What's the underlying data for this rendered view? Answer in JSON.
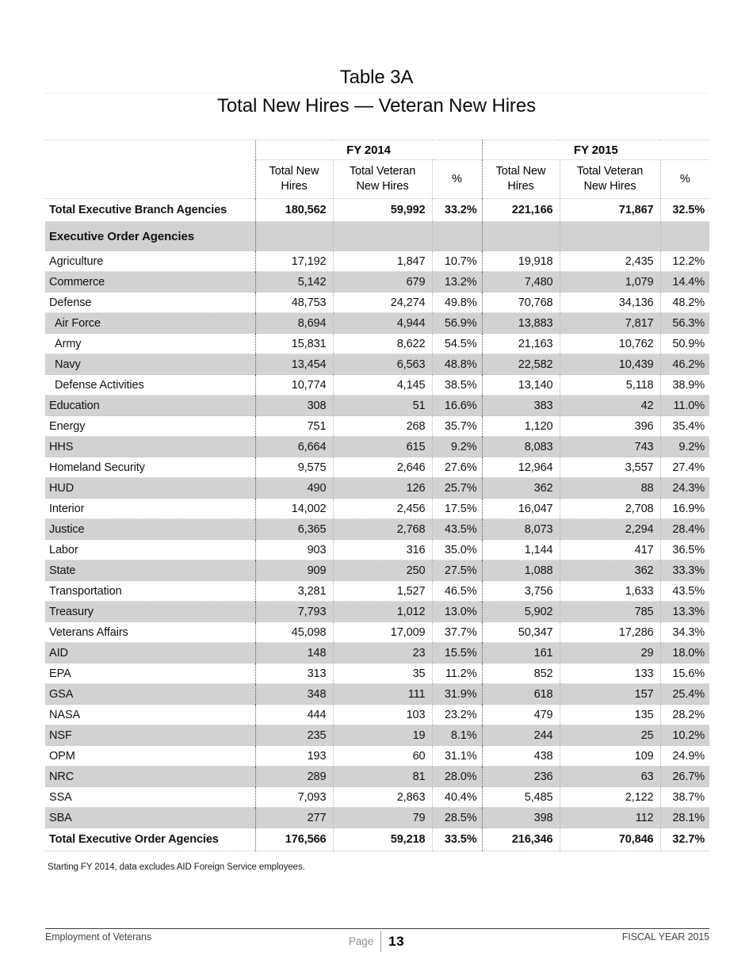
{
  "page": {
    "title_line1": "Table 3A",
    "title_line2": "Total New Hires — Veteran New Hires"
  },
  "table": {
    "col_groups": [
      "FY 2014",
      "FY 2015"
    ],
    "sub_headers": [
      "Total New Hires",
      "Total Veteran New Hires",
      "%",
      "Total New Hires",
      "Total Veteran New Hires",
      "%"
    ],
    "rows": [
      {
        "label": "Total Executive Branch Agencies",
        "style": "total",
        "shade": false,
        "indent": false,
        "values": [
          "180,562",
          "59,992",
          "33.2%",
          "221,166",
          "71,867",
          "32.5%"
        ]
      },
      {
        "label": "Executive Order Agencies",
        "style": "section",
        "shade": true,
        "indent": false,
        "values": [
          "",
          "",
          "",
          "",
          "",
          ""
        ]
      },
      {
        "label": "Agriculture",
        "style": "plain",
        "shade": false,
        "indent": false,
        "values": [
          "17,192",
          "1,847",
          "10.7%",
          "19,918",
          "2,435",
          "12.2%"
        ]
      },
      {
        "label": "Commerce",
        "style": "plain",
        "shade": true,
        "indent": false,
        "values": [
          "5,142",
          "679",
          "13.2%",
          "7,480",
          "1,079",
          "14.4%"
        ]
      },
      {
        "label": "Defense",
        "style": "plain",
        "shade": false,
        "indent": false,
        "values": [
          "48,753",
          "24,274",
          "49.8%",
          "70,768",
          "34,136",
          "48.2%"
        ]
      },
      {
        "label": "Air Force",
        "style": "plain",
        "shade": true,
        "indent": true,
        "values": [
          "8,694",
          "4,944",
          "56.9%",
          "13,883",
          "7,817",
          "56.3%"
        ]
      },
      {
        "label": "Army",
        "style": "plain",
        "shade": false,
        "indent": true,
        "values": [
          "15,831",
          "8,622",
          "54.5%",
          "21,163",
          "10,762",
          "50.9%"
        ]
      },
      {
        "label": "Navy",
        "style": "plain",
        "shade": true,
        "indent": true,
        "values": [
          "13,454",
          "6,563",
          "48.8%",
          "22,582",
          "10,439",
          "46.2%"
        ]
      },
      {
        "label": "Defense Activities",
        "style": "plain",
        "shade": false,
        "indent": true,
        "values": [
          "10,774",
          "4,145",
          "38.5%",
          "13,140",
          "5,118",
          "38.9%"
        ]
      },
      {
        "label": "Education",
        "style": "plain",
        "shade": true,
        "indent": false,
        "values": [
          "308",
          "51",
          "16.6%",
          "383",
          "42",
          "11.0%"
        ]
      },
      {
        "label": "Energy",
        "style": "plain",
        "shade": false,
        "indent": false,
        "values": [
          "751",
          "268",
          "35.7%",
          "1,120",
          "396",
          "35.4%"
        ]
      },
      {
        "label": "HHS",
        "style": "plain",
        "shade": true,
        "indent": false,
        "values": [
          "6,664",
          "615",
          "9.2%",
          "8,083",
          "743",
          "9.2%"
        ]
      },
      {
        "label": "Homeland Security",
        "style": "plain",
        "shade": false,
        "indent": false,
        "values": [
          "9,575",
          "2,646",
          "27.6%",
          "12,964",
          "3,557",
          "27.4%"
        ]
      },
      {
        "label": "HUD",
        "style": "plain",
        "shade": true,
        "indent": false,
        "values": [
          "490",
          "126",
          "25.7%",
          "362",
          "88",
          "24.3%"
        ]
      },
      {
        "label": "Interior",
        "style": "plain",
        "shade": false,
        "indent": false,
        "values": [
          "14,002",
          "2,456",
          "17.5%",
          "16,047",
          "2,708",
          "16.9%"
        ]
      },
      {
        "label": "Justice",
        "style": "plain",
        "shade": true,
        "indent": false,
        "values": [
          "6,365",
          "2,768",
          "43.5%",
          "8,073",
          "2,294",
          "28.4%"
        ]
      },
      {
        "label": "Labor",
        "style": "plain",
        "shade": false,
        "indent": false,
        "values": [
          "903",
          "316",
          "35.0%",
          "1,144",
          "417",
          "36.5%"
        ]
      },
      {
        "label": "State",
        "style": "plain",
        "shade": true,
        "indent": false,
        "values": [
          "909",
          "250",
          "27.5%",
          "1,088",
          "362",
          "33.3%"
        ]
      },
      {
        "label": "Transportation",
        "style": "plain",
        "shade": false,
        "indent": false,
        "values": [
          "3,281",
          "1,527",
          "46.5%",
          "3,756",
          "1,633",
          "43.5%"
        ]
      },
      {
        "label": "Treasury",
        "style": "plain",
        "shade": true,
        "indent": false,
        "values": [
          "7,793",
          "1,012",
          "13.0%",
          "5,902",
          "785",
          "13.3%"
        ]
      },
      {
        "label": "Veterans Affairs",
        "style": "plain",
        "shade": false,
        "indent": false,
        "values": [
          "45,098",
          "17,009",
          "37.7%",
          "50,347",
          "17,286",
          "34.3%"
        ]
      },
      {
        "label": "AID",
        "style": "plain",
        "shade": true,
        "indent": false,
        "values": [
          "148",
          "23",
          "15.5%",
          "161",
          "29",
          "18.0%"
        ]
      },
      {
        "label": "EPA",
        "style": "plain",
        "shade": false,
        "indent": false,
        "values": [
          "313",
          "35",
          "11.2%",
          "852",
          "133",
          "15.6%"
        ]
      },
      {
        "label": "GSA",
        "style": "plain",
        "shade": true,
        "indent": false,
        "values": [
          "348",
          "111",
          "31.9%",
          "618",
          "157",
          "25.4%"
        ]
      },
      {
        "label": "NASA",
        "style": "plain",
        "shade": false,
        "indent": false,
        "values": [
          "444",
          "103",
          "23.2%",
          "479",
          "135",
          "28.2%"
        ]
      },
      {
        "label": "NSF",
        "style": "plain",
        "shade": true,
        "indent": false,
        "values": [
          "235",
          "19",
          "8.1%",
          "244",
          "25",
          "10.2%"
        ]
      },
      {
        "label": "OPM",
        "style": "plain",
        "shade": false,
        "indent": false,
        "values": [
          "193",
          "60",
          "31.1%",
          "438",
          "109",
          "24.9%"
        ]
      },
      {
        "label": "NRC",
        "style": "plain",
        "shade": true,
        "indent": false,
        "values": [
          "289",
          "81",
          "28.0%",
          "236",
          "63",
          "26.7%"
        ]
      },
      {
        "label": "SSA",
        "style": "plain",
        "shade": false,
        "indent": false,
        "values": [
          "7,093",
          "2,863",
          "40.4%",
          "5,485",
          "2,122",
          "38.7%"
        ]
      },
      {
        "label": "SBA",
        "style": "plain",
        "shade": true,
        "indent": false,
        "values": [
          "277",
          "79",
          "28.5%",
          "398",
          "112",
          "28.1%"
        ]
      },
      {
        "label": "Total Executive Order Agencies",
        "style": "total",
        "shade": false,
        "indent": false,
        "values": [
          "176,566",
          "59,218",
          "33.5%",
          "216,346",
          "70,846",
          "32.7%"
        ]
      }
    ]
  },
  "footnote": "Starting FY 2014, data excludes AID Foreign Service employees.",
  "footer": {
    "left": "Employment of Veterans",
    "page_label": "Page",
    "page_number": "13",
    "right": "FISCAL YEAR 2015"
  },
  "colors": {
    "row_shade": "#d2d2d2",
    "text": "#111111",
    "footer_text": "#454545",
    "page_label_gray": "#8f8f8f"
  }
}
